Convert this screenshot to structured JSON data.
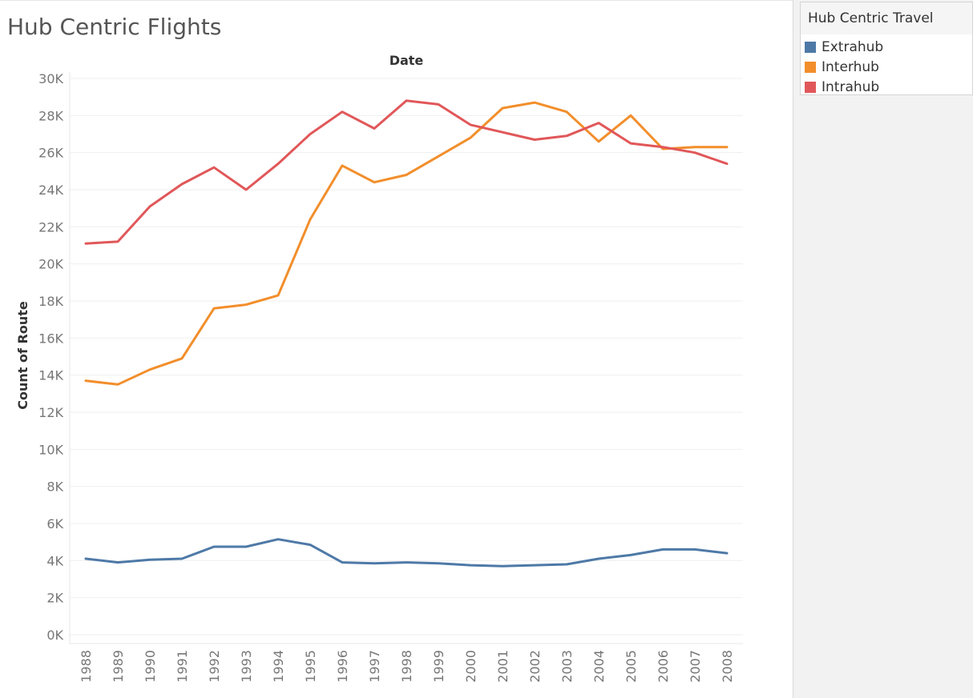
{
  "title": "Hub Centric Flights",
  "legend": {
    "title": "Hub Centric Travel",
    "items": [
      {
        "label": "Extrahub",
        "color": "#4e79a7"
      },
      {
        "label": "Interhub",
        "color": "#f28e2b"
      },
      {
        "label": "Intrahub",
        "color": "#e15759"
      }
    ]
  },
  "chart_data": {
    "type": "line",
    "title": "Hub Centric Flights",
    "xlabel": "Date",
    "ylabel": "Count of Route",
    "x": [
      "1988",
      "1989",
      "1990",
      "1991",
      "1992",
      "1993",
      "1994",
      "1995",
      "1996",
      "1997",
      "1998",
      "1999",
      "2000",
      "2001",
      "2002",
      "2003",
      "2004",
      "2005",
      "2006",
      "2007",
      "2008"
    ],
    "yticks": [
      "0K",
      "2K",
      "4K",
      "6K",
      "8K",
      "10K",
      "12K",
      "14K",
      "16K",
      "18K",
      "20K",
      "22K",
      "24K",
      "26K",
      "28K",
      "30K"
    ],
    "ylim": [
      0,
      30000
    ],
    "grid": true,
    "legend_position": "right",
    "series": [
      {
        "name": "Extrahub",
        "color": "#4e79a7",
        "values": [
          4100,
          3900,
          4050,
          4100,
          4750,
          4750,
          5150,
          4850,
          3900,
          3850,
          3900,
          3850,
          3750,
          3700,
          3750,
          3800,
          4100,
          4300,
          4600,
          4600,
          4400
        ]
      },
      {
        "name": "Interhub",
        "color": "#f28e2b",
        "values": [
          13700,
          13500,
          14300,
          14900,
          17600,
          17800,
          18300,
          22400,
          25300,
          24400,
          24800,
          25800,
          26800,
          28400,
          28700,
          28200,
          26600,
          28000,
          26200,
          26300,
          26300
        ]
      },
      {
        "name": "Intrahub",
        "color": "#e15759",
        "values": [
          21100,
          21200,
          23100,
          24300,
          25200,
          24000,
          25400,
          27000,
          28200,
          27300,
          28800,
          28600,
          27500,
          27100,
          26700,
          26900,
          27600,
          26500,
          26300,
          26000,
          25400
        ]
      }
    ]
  }
}
